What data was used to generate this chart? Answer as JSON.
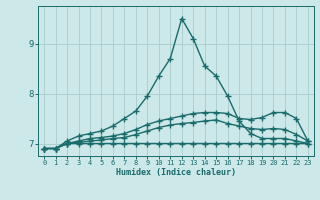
{
  "xlabel": "Humidex (Indice chaleur)",
  "ylabel": "",
  "xlim": [
    -0.5,
    23.5
  ],
  "ylim": [
    6.75,
    9.75
  ],
  "bg_color": "#cce8e8",
  "grid_color": "#aacccc",
  "line_color": "#1a6b6b",
  "line_width": 1.0,
  "marker": "+",
  "markersize": 4,
  "markeredgewidth": 1.0,
  "series": [
    [
      6.9,
      6.9,
      7.05,
      7.15,
      7.2,
      7.25,
      7.35,
      7.5,
      7.65,
      7.95,
      8.35,
      8.7,
      9.5,
      9.1,
      8.55,
      8.35,
      7.95,
      7.45,
      7.2,
      7.1,
      7.1,
      7.1,
      7.05,
      7.0
    ],
    [
      6.9,
      6.9,
      7.0,
      7.05,
      7.1,
      7.12,
      7.15,
      7.2,
      7.28,
      7.38,
      7.45,
      7.5,
      7.55,
      7.6,
      7.62,
      7.62,
      7.6,
      7.5,
      7.48,
      7.52,
      7.62,
      7.62,
      7.5,
      7.05
    ],
    [
      6.9,
      6.9,
      7.0,
      7.02,
      7.05,
      7.07,
      7.1,
      7.12,
      7.18,
      7.25,
      7.32,
      7.37,
      7.4,
      7.42,
      7.45,
      7.47,
      7.4,
      7.35,
      7.3,
      7.28,
      7.3,
      7.28,
      7.18,
      7.05
    ],
    [
      6.9,
      6.9,
      7.0,
      7.0,
      7.0,
      7.0,
      7.0,
      7.0,
      7.0,
      7.0,
      7.0,
      7.0,
      7.0,
      7.0,
      7.0,
      7.0,
      7.0,
      7.0,
      7.0,
      7.0,
      7.0,
      7.0,
      7.0,
      7.0
    ]
  ],
  "yticks": [
    7,
    8,
    9
  ],
  "xticks": [
    0,
    1,
    2,
    3,
    4,
    5,
    6,
    7,
    8,
    9,
    10,
    11,
    12,
    13,
    14,
    15,
    16,
    17,
    18,
    19,
    20,
    21,
    22,
    23
  ]
}
